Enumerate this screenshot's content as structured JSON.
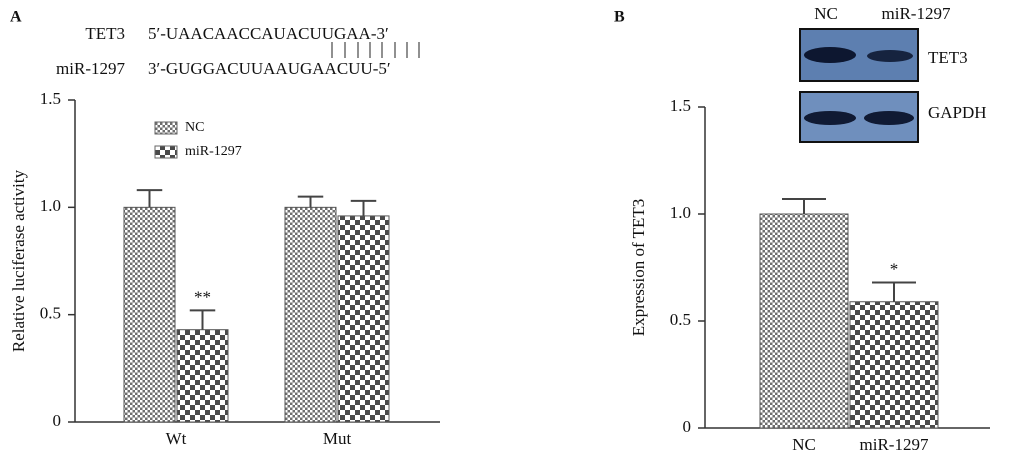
{
  "chart_data": [
    {
      "type": "bar",
      "panel": "A",
      "ylabel": "Relative luciferase activity",
      "categories": [
        "Wt",
        "Mut"
      ],
      "series": [
        {
          "name": "NC",
          "color": "#6e6e6e",
          "values": [
            1.0,
            1.0
          ],
          "errors": [
            0.08,
            0.05
          ],
          "significance": [
            null,
            null
          ]
        },
        {
          "name": "miR-1297",
          "color": "#4a4a4a",
          "values": [
            0.43,
            0.96
          ],
          "errors": [
            0.09,
            0.07
          ],
          "significance": [
            "**",
            null
          ]
        }
      ],
      "ylim": [
        0,
        1.5
      ],
      "yticks": [
        0,
        0.5,
        {
          "value": 1,
          "label": "1.0"
        },
        1.5
      ],
      "legend": "upper left",
      "sequence": [
        {
          "name": "TET3",
          "text": "5′-UAACAACCAUACUUGAA-3′"
        },
        {
          "name": "miR-1297",
          "text": "3′-GUGGACUUAAUGAACUU-5′"
        }
      ]
    },
    {
      "type": "bar",
      "panel": "B",
      "ylabel": "Expression of TET3",
      "categories": [
        "NC",
        "miR-1297"
      ],
      "values": [
        1.0,
        0.59
      ],
      "errors": [
        0.07,
        0.09
      ],
      "significance": [
        null,
        "*"
      ],
      "colors": [
        "#6e6e6e",
        "#4a4a4a"
      ],
      "ylim": [
        0,
        1.5
      ],
      "yticks": [
        0,
        0.5,
        {
          "value": 1,
          "label": "1.0"
        },
        1.5
      ],
      "blot": {
        "lanes": [
          "NC",
          "miR-1297"
        ],
        "bands": [
          "TET3",
          "GAPDH"
        ]
      }
    }
  ]
}
